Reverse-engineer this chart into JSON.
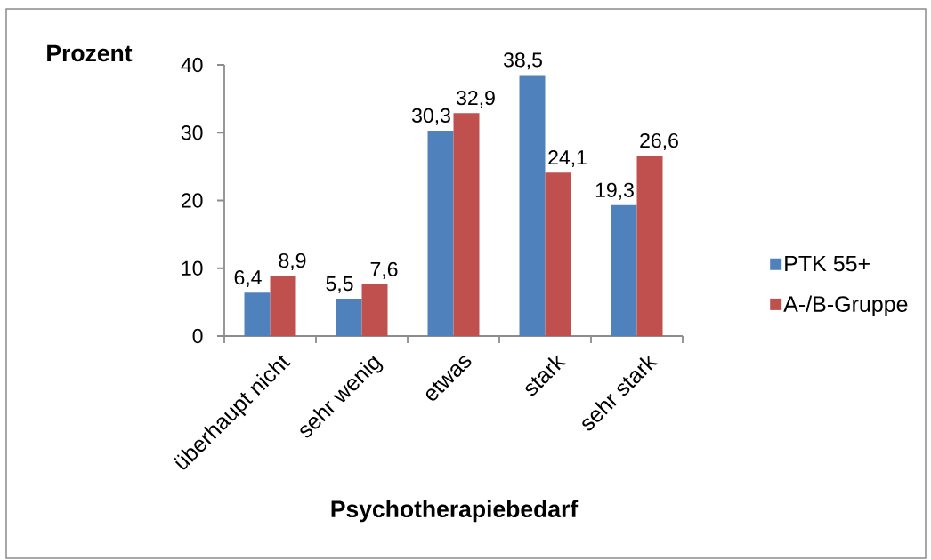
{
  "chart_data": {
    "type": "bar",
    "xlabel": "Psychotherapiebedarf",
    "ylabel": "Prozent",
    "categories": [
      "überhaupt nicht",
      "sehr wenig",
      "etwas",
      "stark",
      "sehr stark"
    ],
    "series": [
      {
        "name": "PTK 55+",
        "color": "#4f81bd",
        "values": [
          6.4,
          5.5,
          30.3,
          38.5,
          19.3
        ],
        "value_labels": [
          "6,4",
          "5,5",
          "30,3",
          "38,5",
          "19,3"
        ]
      },
      {
        "name": "A-/B-Gruppe",
        "color": "#c0504d",
        "values": [
          8.9,
          7.6,
          32.9,
          24.1,
          26.6
        ],
        "value_labels": [
          "8,9",
          "7,6",
          "32,9",
          "24,1",
          "26,6"
        ]
      }
    ],
    "ylim": [
      0,
      40
    ],
    "yticks": [
      0,
      10,
      20,
      30,
      40
    ],
    "legend": "right"
  }
}
